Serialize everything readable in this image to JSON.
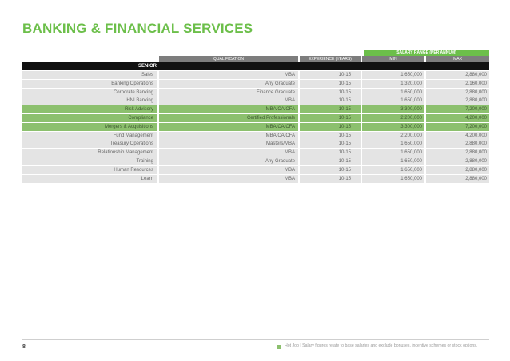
{
  "title": "BANKING & FINANCIAL SERVICES",
  "salary_range_label": "SALARY RANGE (PER ANNUM)",
  "columns": {
    "qualification": "QUALIFICATION",
    "experience": "EXPERIENCE (YEARS)",
    "min": "MIN",
    "max": "MAX"
  },
  "level": "SENIOR",
  "rows": [
    {
      "role": "Sales",
      "qualification": "MBA",
      "experience": "10-15",
      "min": "1,650,000",
      "max": "2,880,000",
      "hot": false
    },
    {
      "role": "Banking Operations",
      "qualification": "Any Graduate",
      "experience": "10-15",
      "min": "1,320,000",
      "max": "2,160,000",
      "hot": false
    },
    {
      "role": "Corporate Banking",
      "qualification": "Finance Graduate",
      "experience": "10-15",
      "min": "1,650,000",
      "max": "2,880,000",
      "hot": false
    },
    {
      "role": "HNI Banking",
      "qualification": "MBA",
      "experience": "10-15",
      "min": "1,650,000",
      "max": "2,880,000",
      "hot": false
    },
    {
      "role": "Risk Advisory",
      "qualification": "MBA/CA/CFA",
      "experience": "10-15",
      "min": "3,300,000",
      "max": "7,200,000",
      "hot": true
    },
    {
      "role": "Compliance",
      "qualification": "Certified Professionals",
      "experience": "10-15",
      "min": "2,200,000",
      "max": "4,200,000",
      "hot": true
    },
    {
      "role": "Mergers & Acquisitions",
      "qualification": "MBA/CA/CFA",
      "experience": "10-15",
      "min": "3,300,000",
      "max": "7,200,000",
      "hot": true
    },
    {
      "role": "Fund Management",
      "qualification": "MBA/CA/CFA",
      "experience": "10-15",
      "min": "2,200,000",
      "max": "4,200,000",
      "hot": false
    },
    {
      "role": "Treasury Operations",
      "qualification": "Masters/MBA",
      "experience": "10-15",
      "min": "1,650,000",
      "max": "2,880,000",
      "hot": false
    },
    {
      "role": "Relationship Management",
      "qualification": "MBA",
      "experience": "10-15",
      "min": "1,650,000",
      "max": "2,880,000",
      "hot": false
    },
    {
      "role": "Training",
      "qualification": "Any Graduate",
      "experience": "10-15",
      "min": "1,650,000",
      "max": "2,880,000",
      "hot": false
    },
    {
      "role": "Human Resources",
      "qualification": "MBA",
      "experience": "10-15",
      "min": "1,650,000",
      "max": "2,880,000",
      "hot": false
    },
    {
      "role": "Learn",
      "qualification": "MBA",
      "experience": "10-15",
      "min": "1,650,000",
      "max": "2,880,000",
      "hot": false
    }
  ],
  "footer": {
    "page_number": "8",
    "note": "Hot Job  |  Salary figures relate to base salaries and exclude bonuses, incentive schemes or stock options.",
    "hot_color": "#8cc06e"
  },
  "colors": {
    "accent": "#6cbf4a",
    "header_grey": "#7d7d7d",
    "row_grey": "#e4e4e4"
  }
}
